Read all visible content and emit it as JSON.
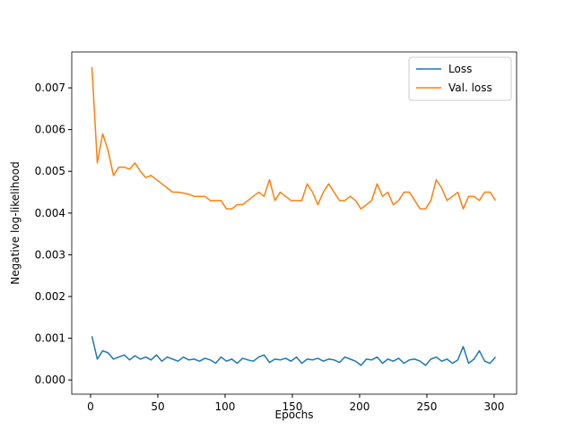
{
  "chart_data": {
    "type": "line",
    "xlabel": "Epochs",
    "ylabel": "Negative log-likelihood",
    "x": [
      1,
      5,
      9,
      13,
      17,
      21,
      25,
      29,
      33,
      37,
      41,
      45,
      49,
      53,
      57,
      61,
      65,
      69,
      73,
      77,
      81,
      85,
      89,
      93,
      97,
      101,
      105,
      109,
      113,
      117,
      121,
      125,
      129,
      133,
      137,
      141,
      145,
      149,
      153,
      157,
      161,
      165,
      169,
      173,
      177,
      181,
      185,
      189,
      193,
      197,
      201,
      205,
      209,
      213,
      217,
      221,
      225,
      229,
      233,
      237,
      241,
      245,
      249,
      253,
      257,
      261,
      265,
      269,
      273,
      277,
      281,
      285,
      289,
      293,
      297,
      301
    ],
    "series": [
      {
        "name": "Loss",
        "color": "#1f77b4",
        "values": [
          0.00105,
          0.0005,
          0.0007,
          0.00065,
          0.0005,
          0.00055,
          0.0006,
          0.00048,
          0.00058,
          0.0005,
          0.00055,
          0.00048,
          0.0006,
          0.00045,
          0.00055,
          0.0005,
          0.00045,
          0.00055,
          0.00048,
          0.0005,
          0.00045,
          0.00052,
          0.00048,
          0.0004,
          0.00055,
          0.00045,
          0.0005,
          0.0004,
          0.00052,
          0.00048,
          0.00045,
          0.00055,
          0.0006,
          0.00042,
          0.0005,
          0.00048,
          0.00052,
          0.00045,
          0.00055,
          0.0004,
          0.0005,
          0.00048,
          0.00052,
          0.00045,
          0.0005,
          0.00048,
          0.00042,
          0.00055,
          0.0005,
          0.00045,
          0.00035,
          0.0005,
          0.00048,
          0.00055,
          0.0004,
          0.0005,
          0.00045,
          0.00052,
          0.0004,
          0.00048,
          0.0005,
          0.00045,
          0.00035,
          0.0005,
          0.00055,
          0.00045,
          0.0005,
          0.0004,
          0.00048,
          0.0008,
          0.0004,
          0.0005,
          0.0007,
          0.00045,
          0.0004,
          0.00055
        ]
      },
      {
        "name": "Val. loss",
        "color": "#ff7f0e",
        "values": [
          0.0075,
          0.0052,
          0.0059,
          0.0055,
          0.0049,
          0.0051,
          0.0051,
          0.00505,
          0.0052,
          0.005,
          0.00485,
          0.0049,
          0.0048,
          0.0047,
          0.0046,
          0.0045,
          0.0045,
          0.00448,
          0.00445,
          0.0044,
          0.0044,
          0.0044,
          0.0043,
          0.0043,
          0.0043,
          0.0041,
          0.0041,
          0.0042,
          0.0042,
          0.0043,
          0.0044,
          0.0045,
          0.0044,
          0.0048,
          0.0043,
          0.0045,
          0.0044,
          0.0043,
          0.0043,
          0.0043,
          0.0047,
          0.0045,
          0.0042,
          0.0045,
          0.0047,
          0.0045,
          0.0043,
          0.0043,
          0.0044,
          0.0043,
          0.0041,
          0.0042,
          0.0043,
          0.0047,
          0.0044,
          0.0045,
          0.0042,
          0.0043,
          0.0045,
          0.0045,
          0.0043,
          0.0041,
          0.0041,
          0.0043,
          0.0048,
          0.0046,
          0.0043,
          0.0044,
          0.0045,
          0.0041,
          0.0044,
          0.0044,
          0.0043,
          0.0045,
          0.0045,
          0.0043
        ]
      }
    ],
    "xlim": [
      -14,
      316.7
    ],
    "xticks": [
      0,
      50,
      100,
      150,
      200,
      250,
      300
    ],
    "ylim": [
      -0.00034,
      0.00786
    ],
    "yticks": [
      {
        "value": 0,
        "label": "0.000"
      },
      {
        "value": 0.001,
        "label": "0.001"
      },
      {
        "value": 0.002,
        "label": "0.002"
      },
      {
        "value": 0.003,
        "label": "0.003"
      },
      {
        "value": 0.004,
        "label": "0.004"
      },
      {
        "value": 0.005,
        "label": "0.005"
      },
      {
        "value": 0.006,
        "label": "0.006"
      },
      {
        "value": 0.007,
        "label": "0.007"
      }
    ],
    "legend": "upper right"
  }
}
